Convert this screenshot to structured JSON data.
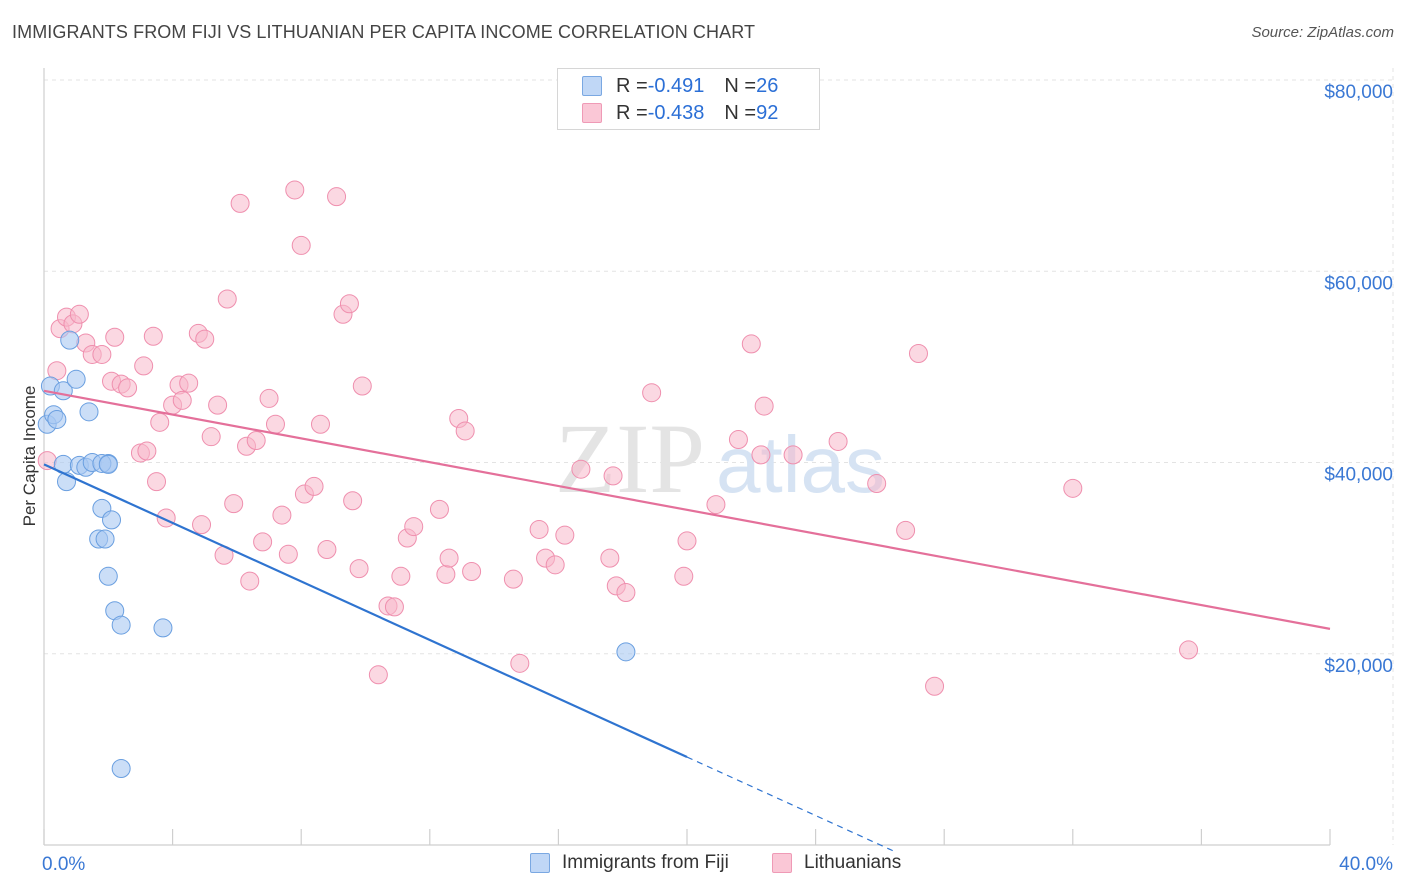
{
  "header": {
    "title": "IMMIGRANTS FROM FIJI VS LITHUANIAN PER CAPITA INCOME CORRELATION CHART",
    "source": "Source: ZipAtlas.com"
  },
  "legend": {
    "rows": [
      {
        "r_label": "R = ",
        "r_value": "-0.491",
        "n_label": "N = ",
        "n_value": "26"
      },
      {
        "r_label": "R = ",
        "r_value": "-0.438",
        "n_label": "N = ",
        "n_value": "92"
      }
    ]
  },
  "watermark": {
    "zip": "ZIP",
    "atlas": "atlas"
  },
  "colors": {
    "fiji_fill": "#a9c8f2",
    "fiji_stroke": "#6a9fe0",
    "fiji_line": "#2f74d0",
    "lith_fill": "#f7b8cb",
    "lith_stroke": "#ef8fae",
    "lith_line": "#e4709a",
    "axis_text": "#3a78d4",
    "grid": "#e3e3e3"
  },
  "chart_data": {
    "type": "scatter",
    "title": "IMMIGRANTS FROM FIJI VS LITHUANIAN PER CAPITA INCOME CORRELATION CHART",
    "ylabel": "Per Capita Income",
    "xlabel": "",
    "xlim": [
      0,
      40
    ],
    "ylim": [
      0,
      80000
    ],
    "x_tick_labels": [
      "0.0%",
      "40.0%"
    ],
    "y_ticks": [
      20000,
      40000,
      60000,
      80000
    ],
    "y_tick_labels": [
      "$20,000",
      "$40,000",
      "$60,000",
      "$80,000"
    ],
    "grid": true,
    "legend_position": "top-center",
    "series": [
      {
        "name": "Immigrants from Fiji",
        "R": -0.491,
        "N": 26,
        "trend": {
          "x0": 0.0,
          "y0": 39800,
          "x1": 20.0,
          "y1": 9200,
          "dashed_to_x": 26.5
        },
        "points": [
          [
            0.1,
            44000
          ],
          [
            0.2,
            48000
          ],
          [
            0.3,
            45000
          ],
          [
            0.4,
            44500
          ],
          [
            0.6,
            47500
          ],
          [
            0.8,
            52800
          ],
          [
            0.7,
            38000
          ],
          [
            0.6,
            39800
          ],
          [
            1.0,
            48700
          ],
          [
            1.1,
            39700
          ],
          [
            1.3,
            39500
          ],
          [
            1.5,
            40000
          ],
          [
            1.4,
            45300
          ],
          [
            1.7,
            32000
          ],
          [
            1.8,
            35200
          ],
          [
            1.9,
            32000
          ],
          [
            2.0,
            39900
          ],
          [
            1.8,
            39900
          ],
          [
            2.1,
            34000
          ],
          [
            2.0,
            39800
          ],
          [
            2.2,
            24500
          ],
          [
            2.0,
            28100
          ],
          [
            2.4,
            23000
          ],
          [
            3.7,
            22700
          ],
          [
            18.1,
            20200
          ],
          [
            2.4,
            8000
          ]
        ]
      },
      {
        "name": "Lithuanians",
        "R": -0.438,
        "N": 92,
        "trend": {
          "x0": 0.0,
          "y0": 47500,
          "x1": 40.0,
          "y1": 22600
        },
        "points": [
          [
            0.1,
            40200
          ],
          [
            0.4,
            49600
          ],
          [
            0.5,
            54000
          ],
          [
            0.7,
            55200
          ],
          [
            0.9,
            54500
          ],
          [
            1.1,
            55500
          ],
          [
            1.3,
            52500
          ],
          [
            1.5,
            51300
          ],
          [
            1.8,
            51300
          ],
          [
            2.1,
            48500
          ],
          [
            2.2,
            53100
          ],
          [
            2.4,
            48200
          ],
          [
            2.6,
            47800
          ],
          [
            3.0,
            41000
          ],
          [
            3.1,
            50100
          ],
          [
            3.2,
            41200
          ],
          [
            3.4,
            53200
          ],
          [
            3.5,
            38000
          ],
          [
            3.6,
            44200
          ],
          [
            3.8,
            34200
          ],
          [
            4.0,
            46000
          ],
          [
            4.2,
            48100
          ],
          [
            4.3,
            46500
          ],
          [
            4.5,
            48300
          ],
          [
            4.8,
            53500
          ],
          [
            4.9,
            33500
          ],
          [
            5.0,
            52900
          ],
          [
            5.2,
            42700
          ],
          [
            5.4,
            46000
          ],
          [
            5.6,
            30300
          ],
          [
            5.7,
            57100
          ],
          [
            5.9,
            35700
          ],
          [
            6.1,
            67100
          ],
          [
            6.3,
            41700
          ],
          [
            6.4,
            27600
          ],
          [
            6.6,
            42300
          ],
          [
            6.8,
            31700
          ],
          [
            7.0,
            46700
          ],
          [
            7.2,
            44000
          ],
          [
            7.4,
            34500
          ],
          [
            7.6,
            30400
          ],
          [
            7.8,
            68500
          ],
          [
            8.0,
            62700
          ],
          [
            8.1,
            36700
          ],
          [
            8.4,
            37500
          ],
          [
            8.6,
            44000
          ],
          [
            8.8,
            30900
          ],
          [
            9.1,
            67800
          ],
          [
            9.3,
            55500
          ],
          [
            9.5,
            56600
          ],
          [
            9.6,
            36000
          ],
          [
            9.8,
            28900
          ],
          [
            9.9,
            48000
          ],
          [
            10.4,
            17800
          ],
          [
            10.7,
            25000
          ],
          [
            10.9,
            24900
          ],
          [
            11.1,
            28100
          ],
          [
            11.3,
            32100
          ],
          [
            11.5,
            33300
          ],
          [
            12.3,
            35100
          ],
          [
            12.5,
            28300
          ],
          [
            12.6,
            30000
          ],
          [
            12.9,
            44600
          ],
          [
            13.1,
            43300
          ],
          [
            13.3,
            28600
          ],
          [
            14.6,
            27800
          ],
          [
            14.8,
            19000
          ],
          [
            15.4,
            33000
          ],
          [
            15.6,
            30000
          ],
          [
            15.9,
            29300
          ],
          [
            16.2,
            32400
          ],
          [
            16.7,
            39300
          ],
          [
            17.6,
            30000
          ],
          [
            17.7,
            38600
          ],
          [
            17.8,
            27100
          ],
          [
            18.1,
            26400
          ],
          [
            18.9,
            47300
          ],
          [
            19.9,
            28100
          ],
          [
            20.0,
            31800
          ],
          [
            20.9,
            35600
          ],
          [
            21.6,
            42400
          ],
          [
            22.0,
            52400
          ],
          [
            22.3,
            40800
          ],
          [
            22.4,
            45900
          ],
          [
            23.3,
            40800
          ],
          [
            24.7,
            42200
          ],
          [
            25.9,
            37800
          ],
          [
            26.8,
            32900
          ],
          [
            27.2,
            51400
          ],
          [
            27.7,
            16600
          ],
          [
            32.0,
            37300
          ],
          [
            35.6,
            20400
          ]
        ]
      }
    ]
  },
  "bottom_legend": {
    "fiji": "Immigrants from Fiji",
    "lith": "Lithuanians"
  }
}
